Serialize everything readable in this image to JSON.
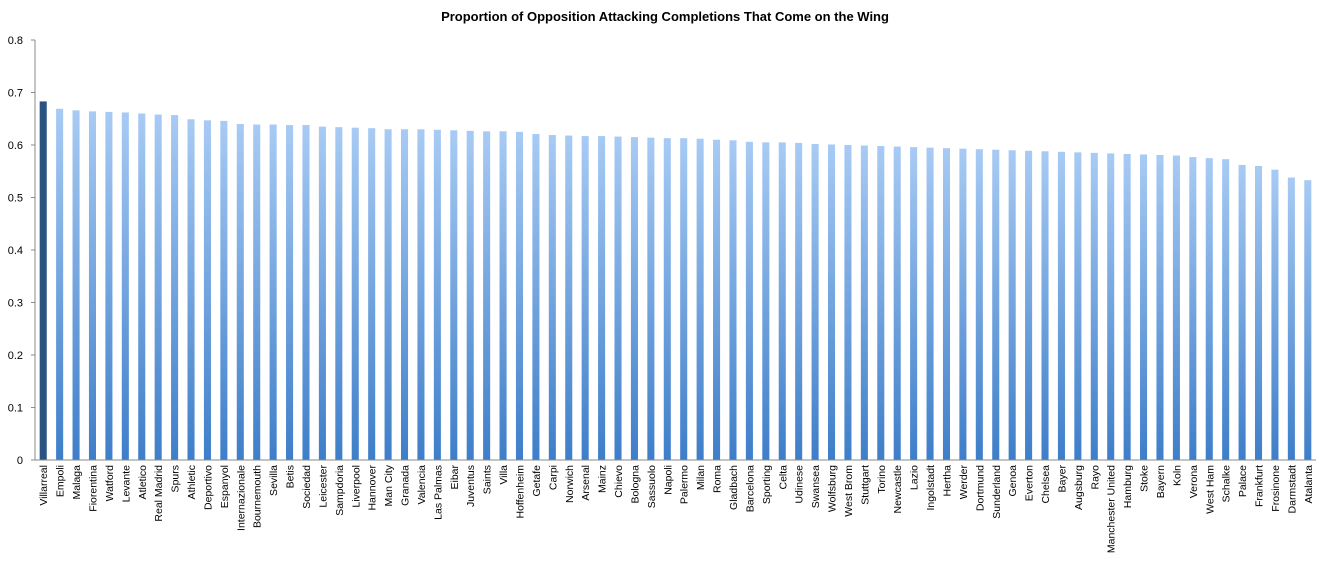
{
  "chart_data": {
    "type": "bar",
    "title": "Proportion of Opposition Attacking Completions That Come on the Wing",
    "xlabel": "",
    "ylabel": "",
    "ylim": [
      0,
      0.8
    ],
    "yticks": [
      "0",
      "0.1",
      "0.2",
      "0.3",
      "0.4",
      "0.5",
      "0.6",
      "0.7",
      "0.8"
    ],
    "grid": false,
    "legend": "none",
    "highlight_color": "#2a5382",
    "bar_color_top": "#a8cbf4",
    "bar_color_bottom": "#3e7ec9",
    "categories": [
      "Villarreal",
      "Empoli",
      "Malaga",
      "Fiorentina",
      "Watford",
      "Levante",
      "Atletico",
      "Real Madrid",
      "Spurs",
      "Athletic",
      "Deportivo",
      "Espanyol",
      "Internazionale",
      "Bournemouth",
      "Sevilla",
      "Betis",
      "Sociedad",
      "Leicester",
      "Sampdoria",
      "Liverpool",
      "Hannover",
      "Man City",
      "Granada",
      "Valencia",
      "Las Palmas",
      "Eibar",
      "Juventus",
      "Saints",
      "Villa",
      "Hoffenheim",
      "Getafe",
      "Carpi",
      "Norwich",
      "Arsenal",
      "Mainz",
      "Chievo",
      "Bologna",
      "Sassuolo",
      "Napoli",
      "Palermo",
      "Milan",
      "Roma",
      "Gladbach",
      "Barcelona",
      "Sporting",
      "Celta",
      "Udinese",
      "Swansea",
      "Wolfsburg",
      "West Brom",
      "Stuttgart",
      "Torino",
      "Newcastle",
      "Lazio",
      "Ingolstadt",
      "Hertha",
      "Werder",
      "Dortmund",
      "Sunderland",
      "Genoa",
      "Everton",
      "Chelsea",
      "Bayer",
      "Augsburg",
      "Rayo",
      "Manchester United",
      "Hamburg",
      "Stoke",
      "Bayern",
      "Koln",
      "Verona",
      "West Ham",
      "Schalke",
      "Palace",
      "Frankfurt",
      "Frosinone",
      "Darmstadt",
      "Atalanta"
    ],
    "values": [
      0.683,
      0.669,
      0.666,
      0.664,
      0.663,
      0.662,
      0.66,
      0.658,
      0.657,
      0.649,
      0.647,
      0.646,
      0.64,
      0.639,
      0.639,
      0.638,
      0.638,
      0.635,
      0.634,
      0.633,
      0.632,
      0.63,
      0.63,
      0.63,
      0.629,
      0.628,
      0.627,
      0.626,
      0.626,
      0.625,
      0.621,
      0.619,
      0.618,
      0.617,
      0.617,
      0.616,
      0.615,
      0.614,
      0.613,
      0.613,
      0.612,
      0.61,
      0.609,
      0.606,
      0.605,
      0.605,
      0.604,
      0.602,
      0.601,
      0.6,
      0.599,
      0.598,
      0.597,
      0.596,
      0.595,
      0.594,
      0.593,
      0.592,
      0.591,
      0.59,
      0.589,
      0.588,
      0.587,
      0.586,
      0.585,
      0.584,
      0.583,
      0.582,
      0.581,
      0.58,
      0.577,
      0.575,
      0.573,
      0.562,
      0.56,
      0.553,
      0.538,
      0.533
    ]
  }
}
